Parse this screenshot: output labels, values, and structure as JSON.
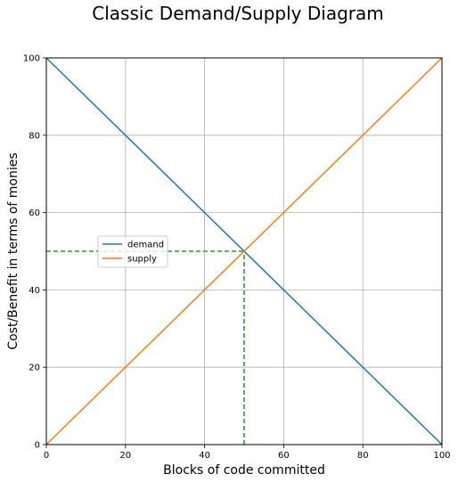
{
  "chart_data": {
    "type": "line",
    "title": "Classic Demand/Supply Diagram",
    "xlabel": "Blocks of code committed",
    "ylabel": "Cost/Benefit in terms of monies",
    "xlim": [
      0,
      100
    ],
    "ylim": [
      0,
      100
    ],
    "xticks": [
      0,
      20,
      40,
      60,
      80,
      100
    ],
    "yticks": [
      0,
      20,
      40,
      60,
      80,
      100
    ],
    "grid": true,
    "legend_position": "center-left",
    "series": [
      {
        "name": "demand",
        "color": "#1f77b4",
        "x": [
          0,
          100
        ],
        "y": [
          100,
          0
        ]
      },
      {
        "name": "supply",
        "color": "#ff7f0e",
        "x": [
          0,
          100
        ],
        "y": [
          0,
          100
        ]
      }
    ],
    "guides": [
      {
        "color": "#2ca02c",
        "style": "dashed",
        "x": [
          0,
          50
        ],
        "y": [
          50,
          50
        ]
      },
      {
        "color": "#2ca02c",
        "style": "dashed",
        "x": [
          50,
          50
        ],
        "y": [
          0,
          50
        ]
      }
    ]
  }
}
